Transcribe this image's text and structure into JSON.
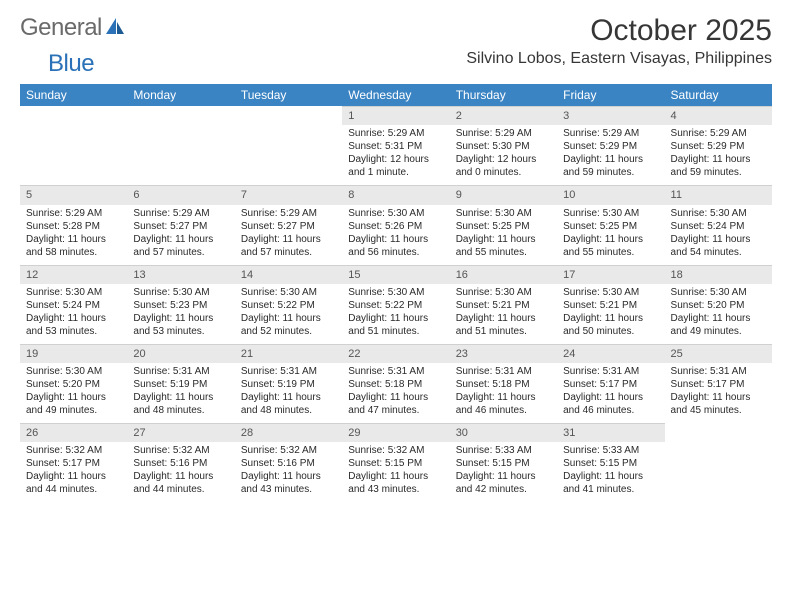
{
  "logo": {
    "text1": "General",
    "text2": "Blue"
  },
  "title": "October 2025",
  "location": "Silvino Lobos, Eastern Visayas, Philippines",
  "dayHeaders": [
    "Sunday",
    "Monday",
    "Tuesday",
    "Wednesday",
    "Thursday",
    "Friday",
    "Saturday"
  ],
  "colors": {
    "headerBg": "#3b84c4",
    "dayNumBg": "#e9e9e9",
    "logoGray": "#6a6a6a",
    "logoBlue": "#2a71b8"
  },
  "weeks": [
    [
      {
        "num": "",
        "lines": []
      },
      {
        "num": "",
        "lines": []
      },
      {
        "num": "",
        "lines": []
      },
      {
        "num": "1",
        "lines": [
          "Sunrise: 5:29 AM",
          "Sunset: 5:31 PM",
          "Daylight: 12 hours",
          "and 1 minute."
        ]
      },
      {
        "num": "2",
        "lines": [
          "Sunrise: 5:29 AM",
          "Sunset: 5:30 PM",
          "Daylight: 12 hours",
          "and 0 minutes."
        ]
      },
      {
        "num": "3",
        "lines": [
          "Sunrise: 5:29 AM",
          "Sunset: 5:29 PM",
          "Daylight: 11 hours",
          "and 59 minutes."
        ]
      },
      {
        "num": "4",
        "lines": [
          "Sunrise: 5:29 AM",
          "Sunset: 5:29 PM",
          "Daylight: 11 hours",
          "and 59 minutes."
        ]
      }
    ],
    [
      {
        "num": "5",
        "lines": [
          "Sunrise: 5:29 AM",
          "Sunset: 5:28 PM",
          "Daylight: 11 hours",
          "and 58 minutes."
        ]
      },
      {
        "num": "6",
        "lines": [
          "Sunrise: 5:29 AM",
          "Sunset: 5:27 PM",
          "Daylight: 11 hours",
          "and 57 minutes."
        ]
      },
      {
        "num": "7",
        "lines": [
          "Sunrise: 5:29 AM",
          "Sunset: 5:27 PM",
          "Daylight: 11 hours",
          "and 57 minutes."
        ]
      },
      {
        "num": "8",
        "lines": [
          "Sunrise: 5:30 AM",
          "Sunset: 5:26 PM",
          "Daylight: 11 hours",
          "and 56 minutes."
        ]
      },
      {
        "num": "9",
        "lines": [
          "Sunrise: 5:30 AM",
          "Sunset: 5:25 PM",
          "Daylight: 11 hours",
          "and 55 minutes."
        ]
      },
      {
        "num": "10",
        "lines": [
          "Sunrise: 5:30 AM",
          "Sunset: 5:25 PM",
          "Daylight: 11 hours",
          "and 55 minutes."
        ]
      },
      {
        "num": "11",
        "lines": [
          "Sunrise: 5:30 AM",
          "Sunset: 5:24 PM",
          "Daylight: 11 hours",
          "and 54 minutes."
        ]
      }
    ],
    [
      {
        "num": "12",
        "lines": [
          "Sunrise: 5:30 AM",
          "Sunset: 5:24 PM",
          "Daylight: 11 hours",
          "and 53 minutes."
        ]
      },
      {
        "num": "13",
        "lines": [
          "Sunrise: 5:30 AM",
          "Sunset: 5:23 PM",
          "Daylight: 11 hours",
          "and 53 minutes."
        ]
      },
      {
        "num": "14",
        "lines": [
          "Sunrise: 5:30 AM",
          "Sunset: 5:22 PM",
          "Daylight: 11 hours",
          "and 52 minutes."
        ]
      },
      {
        "num": "15",
        "lines": [
          "Sunrise: 5:30 AM",
          "Sunset: 5:22 PM",
          "Daylight: 11 hours",
          "and 51 minutes."
        ]
      },
      {
        "num": "16",
        "lines": [
          "Sunrise: 5:30 AM",
          "Sunset: 5:21 PM",
          "Daylight: 11 hours",
          "and 51 minutes."
        ]
      },
      {
        "num": "17",
        "lines": [
          "Sunrise: 5:30 AM",
          "Sunset: 5:21 PM",
          "Daylight: 11 hours",
          "and 50 minutes."
        ]
      },
      {
        "num": "18",
        "lines": [
          "Sunrise: 5:30 AM",
          "Sunset: 5:20 PM",
          "Daylight: 11 hours",
          "and 49 minutes."
        ]
      }
    ],
    [
      {
        "num": "19",
        "lines": [
          "Sunrise: 5:30 AM",
          "Sunset: 5:20 PM",
          "Daylight: 11 hours",
          "and 49 minutes."
        ]
      },
      {
        "num": "20",
        "lines": [
          "Sunrise: 5:31 AM",
          "Sunset: 5:19 PM",
          "Daylight: 11 hours",
          "and 48 minutes."
        ]
      },
      {
        "num": "21",
        "lines": [
          "Sunrise: 5:31 AM",
          "Sunset: 5:19 PM",
          "Daylight: 11 hours",
          "and 48 minutes."
        ]
      },
      {
        "num": "22",
        "lines": [
          "Sunrise: 5:31 AM",
          "Sunset: 5:18 PM",
          "Daylight: 11 hours",
          "and 47 minutes."
        ]
      },
      {
        "num": "23",
        "lines": [
          "Sunrise: 5:31 AM",
          "Sunset: 5:18 PM",
          "Daylight: 11 hours",
          "and 46 minutes."
        ]
      },
      {
        "num": "24",
        "lines": [
          "Sunrise: 5:31 AM",
          "Sunset: 5:17 PM",
          "Daylight: 11 hours",
          "and 46 minutes."
        ]
      },
      {
        "num": "25",
        "lines": [
          "Sunrise: 5:31 AM",
          "Sunset: 5:17 PM",
          "Daylight: 11 hours",
          "and 45 minutes."
        ]
      }
    ],
    [
      {
        "num": "26",
        "lines": [
          "Sunrise: 5:32 AM",
          "Sunset: 5:17 PM",
          "Daylight: 11 hours",
          "and 44 minutes."
        ]
      },
      {
        "num": "27",
        "lines": [
          "Sunrise: 5:32 AM",
          "Sunset: 5:16 PM",
          "Daylight: 11 hours",
          "and 44 minutes."
        ]
      },
      {
        "num": "28",
        "lines": [
          "Sunrise: 5:32 AM",
          "Sunset: 5:16 PM",
          "Daylight: 11 hours",
          "and 43 minutes."
        ]
      },
      {
        "num": "29",
        "lines": [
          "Sunrise: 5:32 AM",
          "Sunset: 5:15 PM",
          "Daylight: 11 hours",
          "and 43 minutes."
        ]
      },
      {
        "num": "30",
        "lines": [
          "Sunrise: 5:33 AM",
          "Sunset: 5:15 PM",
          "Daylight: 11 hours",
          "and 42 minutes."
        ]
      },
      {
        "num": "31",
        "lines": [
          "Sunrise: 5:33 AM",
          "Sunset: 5:15 PM",
          "Daylight: 11 hours",
          "and 41 minutes."
        ]
      },
      {
        "num": "",
        "lines": []
      }
    ]
  ]
}
